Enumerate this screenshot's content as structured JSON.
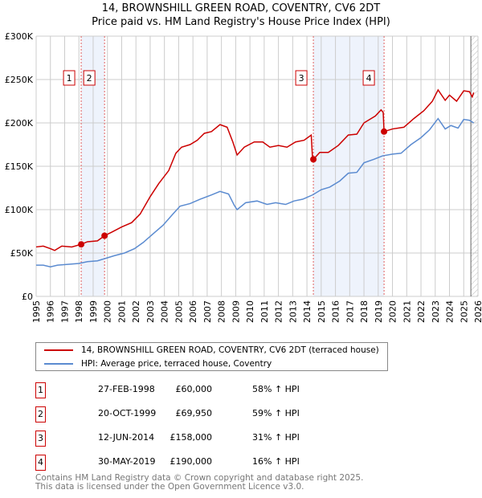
{
  "chart_data": {
    "type": "line",
    "title": "14, BROWNSHILL GREEN ROAD, COVENTRY, CV6 2DT",
    "subtitle": "Price paid vs. HM Land Registry's House Price Index (HPI)",
    "xlim": [
      1995,
      2026
    ],
    "ylim": [
      0,
      300000
    ],
    "x_ticks": [
      1995,
      1996,
      1997,
      1998,
      1999,
      2000,
      2001,
      2002,
      2003,
      2004,
      2005,
      2006,
      2007,
      2008,
      2009,
      2010,
      2011,
      2012,
      2013,
      2014,
      2015,
      2016,
      2017,
      2018,
      2019,
      2020,
      2021,
      2022,
      2023,
      2024,
      2025,
      2026
    ],
    "y_ticks": [
      {
        "v": 0,
        "label": "£0"
      },
      {
        "v": 50000,
        "label": "£50K"
      },
      {
        "v": 100000,
        "label": "£100K"
      },
      {
        "v": 150000,
        "label": "£150K"
      },
      {
        "v": 200000,
        "label": "£200K"
      },
      {
        "v": 250000,
        "label": "£250K"
      },
      {
        "v": 300000,
        "label": "£300K"
      }
    ],
    "grid": true,
    "series": [
      {
        "name": "14, BROWNSHILL GREEN ROAD, COVENTRY, CV6 2DT (terraced house)",
        "color": "#cc0000",
        "points": [
          [
            1995,
            57000
          ],
          [
            1995.5,
            58000
          ],
          [
            1996,
            55000
          ],
          [
            1996.3,
            53000
          ],
          [
            1996.8,
            58000
          ],
          [
            1997.5,
            57000
          ],
          [
            1998.15,
            60000
          ],
          [
            1998.6,
            63000
          ],
          [
            1999.3,
            64000
          ],
          [
            1999.8,
            69950
          ],
          [
            2000.3,
            74000
          ],
          [
            2001,
            80000
          ],
          [
            2001.7,
            85000
          ],
          [
            2002.3,
            95000
          ],
          [
            2003,
            115000
          ],
          [
            2003.6,
            130000
          ],
          [
            2004.3,
            145000
          ],
          [
            2004.8,
            165000
          ],
          [
            2005.2,
            172000
          ],
          [
            2005.8,
            175000
          ],
          [
            2006.3,
            180000
          ],
          [
            2006.8,
            188000
          ],
          [
            2007.3,
            190000
          ],
          [
            2007.9,
            198000
          ],
          [
            2008.4,
            195000
          ],
          [
            2008.8,
            178000
          ],
          [
            2009.1,
            163000
          ],
          [
            2009.6,
            172000
          ],
          [
            2010.3,
            178000
          ],
          [
            2010.9,
            178000
          ],
          [
            2011.4,
            172000
          ],
          [
            2012,
            174000
          ],
          [
            2012.6,
            172000
          ],
          [
            2013.2,
            178000
          ],
          [
            2013.8,
            180000
          ],
          [
            2014.3,
            186000
          ],
          [
            2014.38,
            162000
          ],
          [
            2014.45,
            158000
          ],
          [
            2014.9,
            166000
          ],
          [
            2015.5,
            166000
          ],
          [
            2016.2,
            174000
          ],
          [
            2016.9,
            186000
          ],
          [
            2017.5,
            187000
          ],
          [
            2018,
            200000
          ],
          [
            2018.8,
            208000
          ],
          [
            2019.2,
            215000
          ],
          [
            2019.35,
            212000
          ],
          [
            2019.41,
            190000
          ],
          [
            2020,
            193000
          ],
          [
            2020.8,
            195000
          ],
          [
            2021.5,
            205000
          ],
          [
            2022.2,
            214000
          ],
          [
            2022.8,
            225000
          ],
          [
            2023.2,
            238000
          ],
          [
            2023.7,
            226000
          ],
          [
            2024,
            232000
          ],
          [
            2024.5,
            225000
          ],
          [
            2025,
            237000
          ],
          [
            2025.4,
            236000
          ],
          [
            2025.6,
            230000
          ],
          [
            2025.7,
            235000
          ]
        ]
      },
      {
        "name": "HPI: Average price, terraced house, Coventry",
        "color": "#5b8bd0",
        "points": [
          [
            1995,
            36000
          ],
          [
            1995.5,
            36000
          ],
          [
            1996,
            34000
          ],
          [
            1996.5,
            36000
          ],
          [
            1997.3,
            37000
          ],
          [
            1998,
            38000
          ],
          [
            1998.6,
            40000
          ],
          [
            1999.3,
            41000
          ],
          [
            1999.9,
            44000
          ],
          [
            2000.5,
            47000
          ],
          [
            2001.2,
            50000
          ],
          [
            2001.9,
            55000
          ],
          [
            2002.5,
            62000
          ],
          [
            2003.2,
            72000
          ],
          [
            2003.9,
            82000
          ],
          [
            2004.6,
            95000
          ],
          [
            2005.1,
            104000
          ],
          [
            2005.8,
            107000
          ],
          [
            2006.5,
            112000
          ],
          [
            2007.3,
            117000
          ],
          [
            2007.9,
            121000
          ],
          [
            2008.5,
            118000
          ],
          [
            2008.9,
            105000
          ],
          [
            2009.1,
            100000
          ],
          [
            2009.7,
            108000
          ],
          [
            2010.5,
            110000
          ],
          [
            2011.2,
            106000
          ],
          [
            2011.8,
            108000
          ],
          [
            2012.5,
            106000
          ],
          [
            2013.1,
            110000
          ],
          [
            2013.7,
            112000
          ],
          [
            2014.4,
            117000
          ],
          [
            2015,
            123000
          ],
          [
            2015.6,
            126000
          ],
          [
            2016.3,
            133000
          ],
          [
            2016.9,
            142000
          ],
          [
            2017.5,
            143000
          ],
          [
            2018,
            154000
          ],
          [
            2018.7,
            158000
          ],
          [
            2019.3,
            162000
          ],
          [
            2020,
            164000
          ],
          [
            2020.6,
            165000
          ],
          [
            2021.3,
            175000
          ],
          [
            2022,
            183000
          ],
          [
            2022.6,
            192000
          ],
          [
            2023.2,
            205000
          ],
          [
            2023.7,
            193000
          ],
          [
            2024.1,
            197000
          ],
          [
            2024.6,
            194000
          ],
          [
            2025,
            204000
          ],
          [
            2025.4,
            203000
          ],
          [
            2025.7,
            200000
          ]
        ]
      }
    ],
    "sales": [
      {
        "n": "1",
        "x": 1998.16,
        "y": 60000,
        "date": "27-FEB-1998",
        "price": "£60,000",
        "hpi": "58% ↑ HPI"
      },
      {
        "n": "2",
        "x": 1999.8,
        "y": 69950,
        "date": "20-OCT-1999",
        "price": "£69,950",
        "hpi": "59% ↑ HPI"
      },
      {
        "n": "3",
        "x": 2014.45,
        "y": 158000,
        "date": "12-JUN-2014",
        "price": "£158,000",
        "hpi": "31% ↑ HPI"
      },
      {
        "n": "4",
        "x": 2019.41,
        "y": 190000,
        "date": "30-MAY-2019",
        "price": "£190,000",
        "hpi": "16% ↑ HPI"
      }
    ],
    "shaded_ranges": [
      [
        1998.16,
        1999.8
      ],
      [
        2014.45,
        2019.41
      ]
    ],
    "hatched_from": 2025.5,
    "legend_placement": "below"
  },
  "footer": [
    "Contains HM Land Registry data © Crown copyright and database right 2025.",
    "This data is licensed under the Open Government Licence v3.0."
  ]
}
